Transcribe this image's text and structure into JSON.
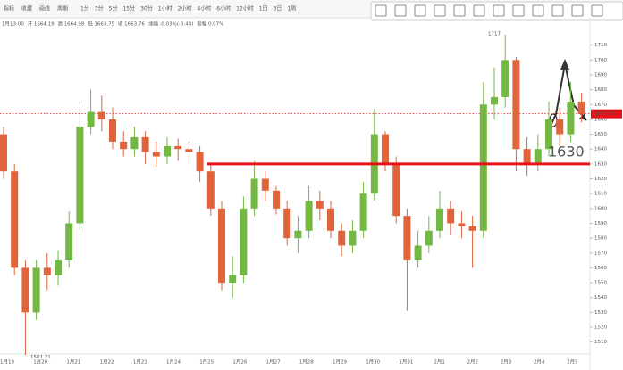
{
  "toolbar": {
    "left": [
      "指标",
      "收藏",
      "画线",
      "周期"
    ],
    "periods": [
      "1分",
      "3分",
      "5分",
      "15分",
      "30分",
      "1小时",
      "2小时",
      "4小时",
      "6小时",
      "12小时",
      "1日",
      "3日",
      "1周"
    ]
  },
  "info": {
    "time": "1月13:00",
    "open_label": "开",
    "open": 1664.19,
    "high_label": "高",
    "high": 1664.98,
    "low_label": "低",
    "low": 1663.75,
    "close_label": "收",
    "close": 1663.76,
    "change_label": "涨幅",
    "change": "-0.03%(-0.44)",
    "amp_label": "振幅",
    "amp": "0.07%"
  },
  "chart_data": {
    "type": "candlestick",
    "up_color": "#72b843",
    "down_color": "#e0633c",
    "date_labels": [
      "1月19",
      "1月20",
      "1月21",
      "1月22",
      "1月23",
      "1月24",
      "1月25",
      "1月26",
      "1月27",
      "1月28",
      "1月29",
      "1月30",
      "1月31",
      "2月1",
      "2月2",
      "2月3",
      "2月4",
      "2月5"
    ],
    "open": [
      1650,
      1625,
      1560,
      1530,
      1560,
      1555,
      1565,
      1590,
      1655,
      1665,
      1660,
      1645,
      1640,
      1648,
      1638,
      1635,
      1642,
      1640,
      1638,
      1625,
      1600,
      1550,
      1555,
      1600,
      1620,
      1612,
      1600,
      1580,
      1585,
      1605,
      1600,
      1585,
      1575,
      1585,
      1610,
      1650,
      1630,
      1595,
      1565,
      1575,
      1585,
      1600,
      1590,
      1588,
      1585,
      1670,
      1675,
      1700,
      1640,
      1630,
      1640,
      1660,
      1650,
      1672
    ],
    "high": [
      1655,
      1630,
      1565,
      1565,
      1570,
      1572,
      1598,
      1672,
      1680,
      1676,
      1668,
      1652,
      1655,
      1652,
      1645,
      1648,
      1647,
      1645,
      1642,
      1630,
      1605,
      1568,
      1608,
      1632,
      1625,
      1615,
      1605,
      1595,
      1615,
      1612,
      1605,
      1590,
      1592,
      1618,
      1667,
      1652,
      1635,
      1600,
      1585,
      1595,
      1612,
      1605,
      1598,
      1595,
      1685,
      1695,
      1717,
      1702,
      1648,
      1650,
      1672,
      1668,
      1685,
      1678
    ],
    "low": [
      1620,
      1555,
      1501.21,
      1525,
      1545,
      1548,
      1560,
      1585,
      1650,
      1652,
      1640,
      1635,
      1635,
      1630,
      1628,
      1630,
      1632,
      1630,
      1618,
      1595,
      1545,
      1540,
      1550,
      1595,
      1605,
      1596,
      1575,
      1570,
      1580,
      1592,
      1580,
      1568,
      1570,
      1580,
      1605,
      1625,
      1590,
      1531,
      1560,
      1570,
      1580,
      1582,
      1580,
      1560,
      1580,
      1660,
      1668,
      1625,
      1622,
      1625,
      1635,
      1642,
      1645,
      1658
    ],
    "close": [
      1625,
      1560,
      1530,
      1560,
      1555,
      1565,
      1590,
      1655,
      1665,
      1660,
      1645,
      1640,
      1648,
      1638,
      1635,
      1642,
      1640,
      1638,
      1625,
      1600,
      1550,
      1555,
      1600,
      1620,
      1612,
      1600,
      1580,
      1585,
      1605,
      1600,
      1585,
      1575,
      1585,
      1610,
      1650,
      1630,
      1595,
      1565,
      1575,
      1585,
      1600,
      1590,
      1588,
      1585,
      1670,
      1675,
      1700,
      1640,
      1630,
      1640,
      1660,
      1650,
      1672,
      1663.76
    ],
    "ylim": [
      1502,
      1720
    ],
    "yticks": [
      1510,
      1520,
      1530,
      1540,
      1550,
      1560,
      1570,
      1580,
      1590,
      1600,
      1610,
      1620,
      1630,
      1640,
      1650,
      1660,
      1670,
      1680,
      1690,
      1700,
      1710
    ],
    "max_label": 1717,
    "min_label": 1501.21,
    "support_line": 1630,
    "support_color": "#e8121a",
    "last_price": 1663.76
  }
}
